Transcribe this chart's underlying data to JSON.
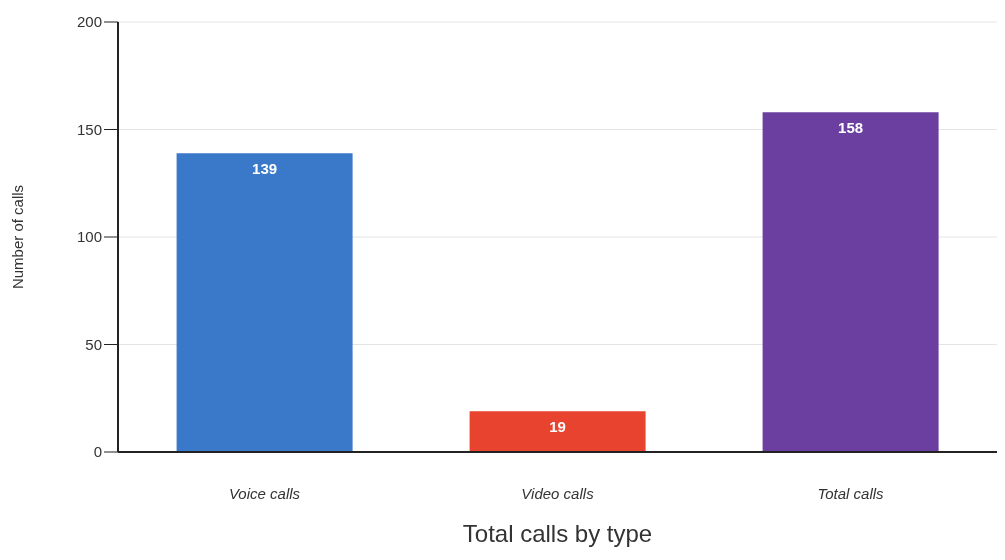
{
  "chart_data": {
    "type": "bar",
    "xlabel": "Total calls by type",
    "ylabel": "Number of calls",
    "categories": [
      "Voice calls",
      "Video calls",
      "Total calls"
    ],
    "values": [
      139,
      19,
      158
    ],
    "colors": [
      "#3a78c9",
      "#e8432e",
      "#6a3fa0"
    ],
    "ylim": [
      0,
      200
    ],
    "yticks": [
      0,
      50,
      100,
      150,
      200
    ],
    "grid": "y",
    "data_labels": true
  }
}
